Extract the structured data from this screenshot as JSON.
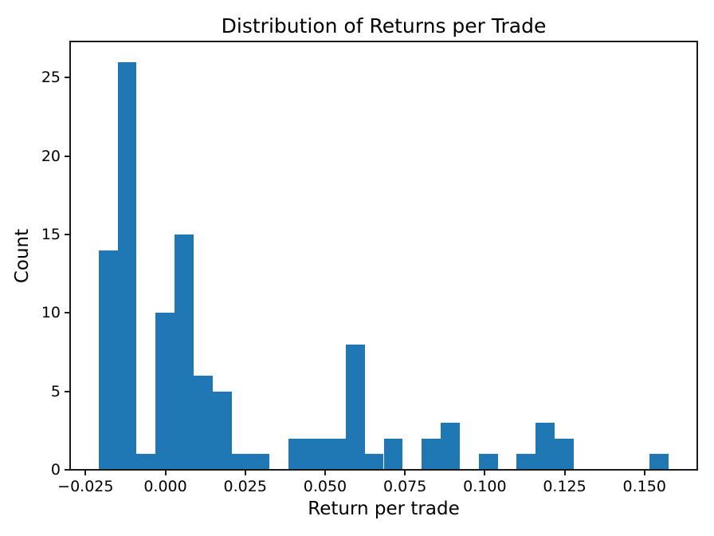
{
  "chart_data": {
    "type": "bar",
    "chart_kind": "histogram",
    "title": "Distribution of Returns per Trade",
    "xlabel": "Return per trade",
    "ylabel": "Count",
    "bar_color": "#1f77b4",
    "axis_color": "#1a1a1a",
    "background": "#ffffff",
    "grid": false,
    "xlim": [
      -0.029825,
      0.166525
    ],
    "ylim": [
      0,
      27.3
    ],
    "x_ticks": [
      {
        "value": -0.025,
        "label": "−0.025"
      },
      {
        "value": 0.0,
        "label": "0.000"
      },
      {
        "value": 0.025,
        "label": "0.025"
      },
      {
        "value": 0.05,
        "label": "0.050"
      },
      {
        "value": 0.075,
        "label": "0.075"
      },
      {
        "value": 0.1,
        "label": "0.100"
      },
      {
        "value": 0.125,
        "label": "0.125"
      },
      {
        "value": 0.15,
        "label": "0.150"
      }
    ],
    "y_ticks": [
      {
        "value": 0,
        "label": "0"
      },
      {
        "value": 5,
        "label": "5"
      },
      {
        "value": 10,
        "label": "10"
      },
      {
        "value": 15,
        "label": "15"
      },
      {
        "value": 20,
        "label": "20"
      },
      {
        "value": 25,
        "label": "25"
      }
    ],
    "bins": {
      "edges": [
        -0.0209,
        -0.01495,
        -0.009,
        -0.00305,
        0.0029,
        0.00885,
        0.0148,
        0.02075,
        0.0267,
        0.03265,
        0.0386,
        0.04455,
        0.0505,
        0.05645,
        0.0624,
        0.06835,
        0.0743,
        0.08025,
        0.0862,
        0.09215,
        0.0981,
        0.10405,
        0.11,
        0.11595,
        0.1219,
        0.12785,
        0.1338,
        0.13975,
        0.1457,
        0.15165,
        0.1576
      ],
      "counts": [
        14,
        26,
        1,
        10,
        15,
        6,
        5,
        1,
        1,
        0,
        2,
        2,
        2,
        8,
        1,
        2,
        0,
        2,
        3,
        0,
        1,
        0,
        1,
        3,
        2,
        0,
        0,
        0,
        0,
        1
      ]
    }
  }
}
